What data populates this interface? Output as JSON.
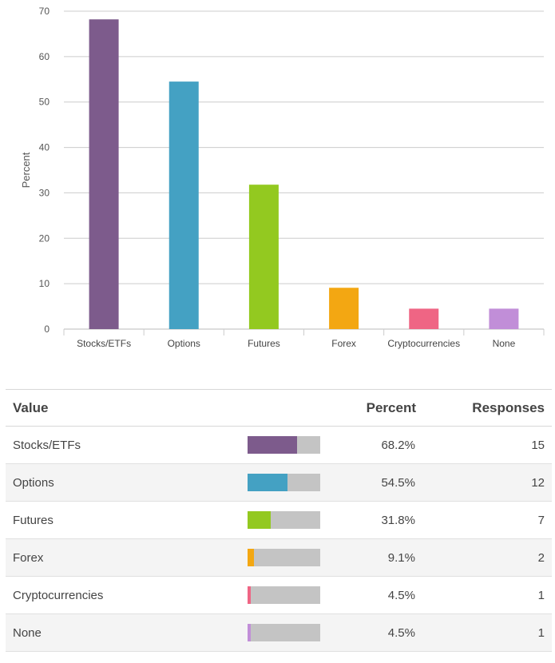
{
  "chart_data": {
    "type": "bar",
    "categories": [
      "Stocks/ETFs",
      "Options",
      "Futures",
      "Forex",
      "Cryptocurrencies",
      "None"
    ],
    "values": [
      68.2,
      54.5,
      31.8,
      9.1,
      4.5,
      4.5
    ],
    "colors": [
      "#7d5b8c",
      "#44a1c3",
      "#93c920",
      "#f3a712",
      "#ef6584",
      "#c18ed8"
    ],
    "ylabel": "Percent",
    "ylim": [
      0,
      70
    ],
    "yticks": [
      "0",
      "10",
      "20",
      "30",
      "40",
      "50",
      "60",
      "70"
    ],
    "grid": true
  },
  "table": {
    "headers": {
      "value": "Value",
      "percent": "Percent",
      "responses": "Responses"
    },
    "rows": [
      {
        "value": "Stocks/ETFs",
        "percent": "68.2%",
        "fraction": 0.682,
        "responses": "15",
        "color": "#7d5b8c"
      },
      {
        "value": "Options",
        "percent": "54.5%",
        "fraction": 0.545,
        "responses": "12",
        "color": "#44a1c3"
      },
      {
        "value": "Futures",
        "percent": "31.8%",
        "fraction": 0.318,
        "responses": "7",
        "color": "#93c920"
      },
      {
        "value": "Forex",
        "percent": "9.1%",
        "fraction": 0.091,
        "responses": "2",
        "color": "#f3a712"
      },
      {
        "value": "Cryptocurrencies",
        "percent": "4.5%",
        "fraction": 0.045,
        "responses": "1",
        "color": "#ef6584"
      },
      {
        "value": "None",
        "percent": "4.5%",
        "fraction": 0.045,
        "responses": "1",
        "color": "#c18ed8"
      }
    ]
  }
}
